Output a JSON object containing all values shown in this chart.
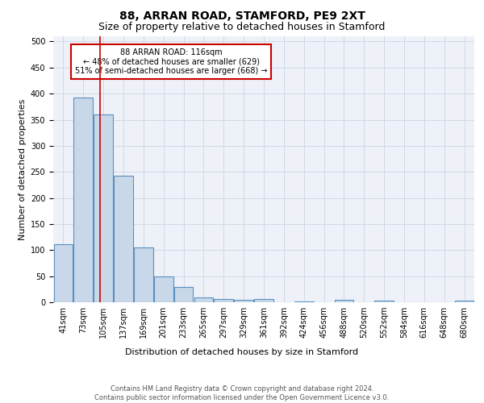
{
  "title1": "88, ARRAN ROAD, STAMFORD, PE9 2XT",
  "title2": "Size of property relative to detached houses in Stamford",
  "xlabel": "Distribution of detached houses by size in Stamford",
  "ylabel": "Number of detached properties",
  "bar_labels": [
    "41sqm",
    "73sqm",
    "105sqm",
    "137sqm",
    "169sqm",
    "201sqm",
    "233sqm",
    "265sqm",
    "297sqm",
    "329sqm",
    "361sqm",
    "392sqm",
    "424sqm",
    "456sqm",
    "488sqm",
    "520sqm",
    "552sqm",
    "584sqm",
    "616sqm",
    "648sqm",
    "680sqm"
  ],
  "bar_values": [
    112,
    393,
    360,
    242,
    105,
    50,
    30,
    10,
    6,
    5,
    6,
    0,
    2,
    0,
    4,
    0,
    3,
    0,
    0,
    0,
    3
  ],
  "bar_color": "#c8d8e8",
  "bar_edge_color": "#5a8fc3",
  "bar_edge_width": 0.8,
  "grid_color": "#d0d8e8",
  "background_color": "#eef2f8",
  "annotation_text": "88 ARRAN ROAD: 116sqm\n← 48% of detached houses are smaller (629)\n51% of semi-detached houses are larger (668) →",
  "annotation_box_color": "#ffffff",
  "annotation_box_edge": "#cc0000",
  "title1_fontsize": 10,
  "title2_fontsize": 9,
  "xlabel_fontsize": 8,
  "ylabel_fontsize": 8,
  "tick_fontsize": 7,
  "annotation_fontsize": 7,
  "footer1": "Contains HM Land Registry data © Crown copyright and database right 2024.",
  "footer2": "Contains public sector information licensed under the Open Government Licence v3.0.",
  "ylim": [
    0,
    510
  ],
  "yticks": [
    0,
    50,
    100,
    150,
    200,
    250,
    300,
    350,
    400,
    450,
    500
  ]
}
